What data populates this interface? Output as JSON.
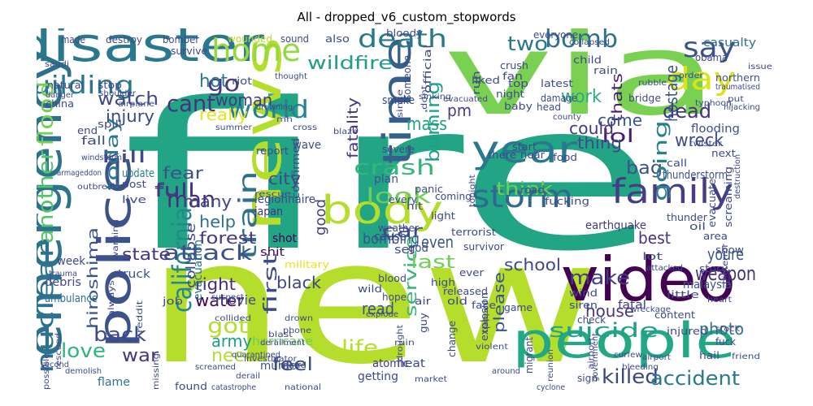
{
  "figure": {
    "title": "All - dropped_v6_custom_stopwords"
  },
  "words": [
    {
      "text": "fire",
      "color": "#21a585"
    },
    {
      "text": "new",
      "color": "#b5dd2b"
    },
    {
      "text": "via",
      "color": "#7ad151"
    },
    {
      "text": "disaster",
      "color": "#2a788e"
    },
    {
      "text": "emergency",
      "color": "#2c728e"
    },
    {
      "text": "news",
      "color": "#b5dd2b"
    },
    {
      "text": "people",
      "color": "#22a884"
    },
    {
      "text": "video",
      "color": "#440154"
    },
    {
      "text": "police",
      "color": "#3b528b"
    },
    {
      "text": "body",
      "color": "#b5dd2b"
    },
    {
      "text": "time",
      "color": "#35608d"
    },
    {
      "text": "year",
      "color": "#2a788e"
    },
    {
      "text": "family",
      "color": "#433e85"
    },
    {
      "text": "storm",
      "color": "#31688e"
    },
    {
      "text": "home",
      "color": "#95d840"
    },
    {
      "text": "day",
      "color": "#dde318"
    },
    {
      "text": "say",
      "color": "#3b528b"
    },
    {
      "text": "death",
      "color": "#2a788e"
    },
    {
      "text": "bomb",
      "color": "#2c728e"
    },
    {
      "text": "building",
      "color": "#2a788e"
    },
    {
      "text": "california",
      "color": "#23898e"
    },
    {
      "text": "nuclear",
      "color": "#2c728e"
    },
    {
      "text": "another",
      "color": "#52c569"
    },
    {
      "text": "flood",
      "color": "#75d054"
    },
    {
      "text": "train",
      "color": "#2e6f8e"
    },
    {
      "text": "world",
      "color": "#26828e"
    },
    {
      "text": "go",
      "color": "#443983"
    },
    {
      "text": "cant",
      "color": "#46327e"
    },
    {
      "text": "man",
      "color": "#472d7b"
    },
    {
      "text": "crash",
      "color": "#35b779"
    },
    {
      "text": "look",
      "color": "#6ece58"
    },
    {
      "text": "car",
      "color": "#3e4989"
    },
    {
      "text": "attack",
      "color": "#3b528b"
    },
    {
      "text": "suicide",
      "color": "#1fa188"
    },
    {
      "text": "make",
      "color": "#443983"
    },
    {
      "text": "dead",
      "color": "#46327e"
    },
    {
      "text": "burning",
      "color": "#1f9e89"
    },
    {
      "text": "watch",
      "color": "#3e4a89"
    },
    {
      "text": "injury",
      "color": "#3e4989"
    },
    {
      "text": "two",
      "color": "#2a788e"
    },
    {
      "text": "work",
      "color": "#27ad81"
    },
    {
      "text": "mass",
      "color": "#20a486"
    },
    {
      "text": "fatality",
      "color": "#46337f"
    },
    {
      "text": "hot",
      "color": "#2a788e"
    },
    {
      "text": "woman",
      "color": "#443983"
    },
    {
      "text": "wildfire",
      "color": "#1f9e89"
    },
    {
      "text": "pm",
      "color": "#433e85"
    },
    {
      "text": "thats",
      "color": "#481f70"
    },
    {
      "text": "lol",
      "color": "#481f70"
    },
    {
      "text": "come",
      "color": "#39558c"
    },
    {
      "text": "hostage",
      "color": "#3b528b"
    },
    {
      "text": "wreck",
      "color": "#3e4989"
    },
    {
      "text": "could",
      "color": "#453882"
    },
    {
      "text": "thing",
      "color": "#3e4989"
    },
    {
      "text": "bag",
      "color": "#3b528b"
    },
    {
      "text": "going",
      "color": "#26818e"
    },
    {
      "text": "kill",
      "color": "#3e4989"
    },
    {
      "text": "today",
      "color": "#2a788e"
    },
    {
      "text": "fear",
      "color": "#3b528b"
    },
    {
      "text": "full",
      "color": "#453781"
    },
    {
      "text": "city",
      "color": "#3e4989"
    },
    {
      "text": "think",
      "color": "#6ece58"
    },
    {
      "text": "many",
      "color": "#414487"
    },
    {
      "text": "hiroshima",
      "color": "#3b528b"
    },
    {
      "text": "love",
      "color": "#2fb47c"
    },
    {
      "text": "back",
      "color": "#3e4989"
    },
    {
      "text": "war",
      "color": "#453781"
    },
    {
      "text": "got",
      "color": "#b5dd2b"
    },
    {
      "text": "need",
      "color": "#b5dd2b"
    },
    {
      "text": "army",
      "color": "#1f9e89"
    },
    {
      "text": "water",
      "color": "#440154"
    },
    {
      "text": "right",
      "color": "#472c7a"
    },
    {
      "text": "forest",
      "color": "#443983"
    },
    {
      "text": "help",
      "color": "#2e6e8e"
    },
    {
      "text": "first",
      "color": "#3e4989"
    },
    {
      "text": "black",
      "color": "#414487"
    },
    {
      "text": "life",
      "color": "#b5dd2b"
    },
    {
      "text": "service",
      "color": "#35b779"
    },
    {
      "text": "feel",
      "color": "#3e4989"
    },
    {
      "text": "killed",
      "color": "#414487"
    },
    {
      "text": "accident",
      "color": "#2a788e"
    },
    {
      "text": "weapon",
      "color": "#46337f"
    },
    {
      "text": "school",
      "color": "#3e4989"
    },
    {
      "text": "last",
      "color": "#6ece58"
    },
    {
      "text": "even",
      "color": "#3b528b"
    },
    {
      "text": "state",
      "color": "#453781"
    },
    {
      "text": "youre",
      "color": "#3b528b"
    },
    {
      "text": "best",
      "color": "#46327e"
    },
    {
      "text": "photo",
      "color": "#2e6f8e"
    },
    {
      "text": "house",
      "color": "#453781"
    },
    {
      "text": "please",
      "color": "#3b528b"
    },
    {
      "text": "good",
      "color": "#433e85"
    },
    {
      "text": "really",
      "color": "#e5e419"
    },
    {
      "text": "read",
      "color": "#3b528b"
    },
    {
      "text": "bombing",
      "color": "#3b528b"
    },
    {
      "text": "collapse",
      "color": "#3e4989"
    },
    {
      "text": "full",
      "color": "#453781"
    },
    {
      "text": "evacuation",
      "color": "#2c728e"
    },
    {
      "text": "earthquake",
      "color": "#443983"
    },
    {
      "text": "thunderstorm",
      "color": "#3b528b"
    },
    {
      "text": "update",
      "color": "#26828e"
    },
    {
      "text": "japan",
      "color": "#46327e"
    },
    {
      "text": "legionnaire",
      "color": "#3e4989"
    },
    {
      "text": "malaysia",
      "color": "#3b528b"
    },
    {
      "text": "fatal",
      "color": "#433e85"
    },
    {
      "text": "movie",
      "color": "#3e4989"
    },
    {
      "text": "hurricane",
      "color": "#6ece58"
    },
    {
      "text": "murder",
      "color": "#3b528b"
    },
    {
      "text": "atomic",
      "color": "#443983"
    },
    {
      "text": "heat",
      "color": "#3e4989"
    },
    {
      "text": "getting",
      "color": "#3e4989"
    },
    {
      "text": "flame",
      "color": "#2a788e"
    },
    {
      "text": "truck",
      "color": "#3b528b"
    },
    {
      "text": "debris",
      "color": "#3e4989"
    },
    {
      "text": "week",
      "color": "#3e4989"
    },
    {
      "text": "ambulance",
      "color": "#2e6f8e"
    },
    {
      "text": "military",
      "color": "#e5e419"
    },
    {
      "text": "shot",
      "color": "#440154"
    },
    {
      "text": "shit",
      "color": "#440154"
    },
    {
      "text": "cause",
      "color": "#3e4989"
    },
    {
      "text": "set",
      "color": "#3e4989"
    },
    {
      "text": "god",
      "color": "#3e4989"
    },
    {
      "text": "plan",
      "color": "#3b528b"
    },
    {
      "text": "fall",
      "color": "#3e4989"
    },
    {
      "text": "wave",
      "color": "#3e4989"
    },
    {
      "text": "report",
      "color": "#3e4989"
    },
    {
      "text": "smoke",
      "color": "#3e4989"
    },
    {
      "text": "severe",
      "color": "#3e4989"
    },
    {
      "text": "riot",
      "color": "#3e4989"
    },
    {
      "text": "everyone",
      "color": "#3e4989"
    },
    {
      "text": "northern",
      "color": "#3b528b"
    },
    {
      "text": "flooding",
      "color": "#3b528b"
    },
    {
      "text": "casualty",
      "color": "#2e6f8e"
    },
    {
      "text": "obama",
      "color": "#3e4989"
    },
    {
      "text": "latest",
      "color": "#3e4989"
    },
    {
      "text": "damage",
      "color": "#3e4989"
    },
    {
      "text": "night",
      "color": "#3e4989"
    },
    {
      "text": "crush",
      "color": "#3e4989"
    },
    {
      "text": "top",
      "color": "#3e4989"
    },
    {
      "text": "child",
      "color": "#3e4989"
    },
    {
      "text": "rain",
      "color": "#3e4989"
    },
    {
      "text": "made",
      "color": "#3e4989"
    },
    {
      "text": "bomber",
      "color": "#3e4989"
    },
    {
      "text": "survive",
      "color": "#3e4989"
    },
    {
      "text": "wounded",
      "color": "#b5dd2b"
    },
    {
      "text": "sound",
      "color": "#3e4989"
    },
    {
      "text": "also",
      "color": "#3e4989"
    },
    {
      "text": "bloody",
      "color": "#3e4989"
    },
    {
      "text": "liked",
      "color": "#3e4989"
    },
    {
      "text": "fan",
      "color": "#3e4989"
    },
    {
      "text": "baby",
      "color": "#3e4989"
    },
    {
      "text": "head",
      "color": "#3e4989"
    },
    {
      "text": "bridge",
      "color": "#3e4989"
    },
    {
      "text": "next",
      "color": "#3e4989"
    },
    {
      "text": "call",
      "color": "#3e4989"
    },
    {
      "text": "thunder",
      "color": "#3e4989"
    },
    {
      "text": "evacuate",
      "color": "#3e4989"
    },
    {
      "text": "screaming",
      "color": "#3e4989"
    },
    {
      "text": "oil",
      "color": "#3e4989"
    },
    {
      "text": "area",
      "color": "#3e4989"
    },
    {
      "text": "show",
      "color": "#3e4989"
    },
    {
      "text": "story",
      "color": "#3e4989"
    },
    {
      "text": "little",
      "color": "#3e4989"
    },
    {
      "text": "wind",
      "color": "#3e4989"
    },
    {
      "text": "siren",
      "color": "#3e4989"
    },
    {
      "text": "content",
      "color": "#3e4989"
    },
    {
      "text": "injured",
      "color": "#3e4989"
    },
    {
      "text": "explosion",
      "color": "#3e4989"
    },
    {
      "text": "check",
      "color": "#3e4989"
    },
    {
      "text": "game",
      "color": "#3e4989"
    },
    {
      "text": "face",
      "color": "#3e4989"
    },
    {
      "text": "released",
      "color": "#3e4989"
    },
    {
      "text": "ever",
      "color": "#3e4989"
    },
    {
      "text": "old",
      "color": "#3e4989"
    },
    {
      "text": "air",
      "color": "#3e4989"
    },
    {
      "text": "hope",
      "color": "#3e4989"
    },
    {
      "text": "wild",
      "color": "#3e4989"
    },
    {
      "text": "blood",
      "color": "#3e4989"
    },
    {
      "text": "high",
      "color": "#3e4989"
    },
    {
      "text": "change",
      "color": "#3e4989"
    },
    {
      "text": "guy",
      "color": "#3e4989"
    },
    {
      "text": "migrant",
      "color": "#3e4989"
    },
    {
      "text": "fucking",
      "color": "#3e4989"
    },
    {
      "text": "terrorist",
      "color": "#3e4989"
    },
    {
      "text": "survivor",
      "color": "#3e4989"
    },
    {
      "text": "tonight",
      "color": "#3e4989"
    },
    {
      "text": "weather",
      "color": "#3e4989"
    },
    {
      "text": "coming",
      "color": "#3e4989"
    },
    {
      "text": "panic",
      "color": "#3e4989"
    },
    {
      "text": "start",
      "color": "#3e4989"
    },
    {
      "text": "there",
      "color": "#3e4989"
    },
    {
      "text": "near",
      "color": "#3e4989"
    },
    {
      "text": "food",
      "color": "#3e4989"
    },
    {
      "text": "end",
      "color": "#3e4989"
    },
    {
      "text": "china",
      "color": "#3e4989"
    },
    {
      "text": "natural",
      "color": "#3e4989"
    },
    {
      "text": "stop",
      "color": "#3e4989"
    },
    {
      "text": "post",
      "color": "#3e4989"
    },
    {
      "text": "live",
      "color": "#3e4989"
    },
    {
      "text": "job",
      "color": "#3e4989"
    },
    {
      "text": "warning",
      "color": "#3e4989"
    },
    {
      "text": "always",
      "color": "#3e4989"
    },
    {
      "text": "found",
      "color": "#3e4989"
    },
    {
      "text": "spill",
      "color": "#3e4989"
    },
    {
      "text": "summer",
      "color": "#3e4989"
    },
    {
      "text": "confirmed",
      "color": "#3e4989"
    },
    {
      "text": "rescue",
      "color": "#3e4989"
    },
    {
      "text": "reddit",
      "color": "#3e4989"
    },
    {
      "text": "missing",
      "color": "#3e4989"
    },
    {
      "text": "mh",
      "color": "#3e4989"
    },
    {
      "text": "cross",
      "color": "#3e4989"
    },
    {
      "text": "someone",
      "color": "#3e4989"
    },
    {
      "text": "run",
      "color": "#3e4989"
    },
    {
      "text": "official",
      "color": "#3e4989"
    },
    {
      "text": "sinking",
      "color": "#3e4989"
    },
    {
      "text": "every",
      "color": "#3e4989"
    },
    {
      "text": "hit",
      "color": "#3e4989"
    },
    {
      "text": "light",
      "color": "#3e4989"
    },
    {
      "text": "trapped",
      "color": "#3e4989"
    },
    {
      "text": "dont",
      "color": "#3e4989"
    },
    {
      "text": "since",
      "color": "#3e4989"
    },
    {
      "text": "sign",
      "color": "#3e4989"
    },
    {
      "text": "fuck",
      "color": "#3e4989"
    },
    {
      "text": "hail",
      "color": "#3e4989"
    },
    {
      "text": "stock",
      "color": "#3e4989"
    },
    {
      "text": "destroy",
      "color": "#3e4989"
    },
    {
      "text": "market",
      "color": "#3e4989"
    },
    {
      "text": "ruin",
      "color": "#3e4989"
    },
    {
      "text": "drought",
      "color": "#3e4989"
    },
    {
      "text": "heart",
      "color": "#3e4989"
    },
    {
      "text": "road",
      "color": "#3e4989"
    },
    {
      "text": "friend",
      "color": "#3e4989"
    },
    {
      "text": "explode",
      "color": "#3e4989"
    },
    {
      "text": "airport",
      "color": "#3e4989"
    },
    {
      "text": "curfew",
      "color": "#3e4989"
    },
    {
      "text": "bleeding",
      "color": "#3e4989"
    },
    {
      "text": "reunion",
      "color": "#3e4989"
    },
    {
      "text": "national",
      "color": "#3e4989"
    },
    {
      "text": "cyclone",
      "color": "#3e4989"
    },
    {
      "text": "wreckage",
      "color": "#3e4989"
    },
    {
      "text": "violent",
      "color": "#3e4989"
    },
    {
      "text": "derail",
      "color": "#3e4989"
    },
    {
      "text": "catastrophe",
      "color": "#3e4989"
    },
    {
      "text": "demolish",
      "color": "#3e4989"
    },
    {
      "text": "second",
      "color": "#3e4989"
    },
    {
      "text": "trauma",
      "color": "#3e4989"
    },
    {
      "text": "windstorm",
      "color": "#3e4989"
    },
    {
      "text": "armageddon",
      "color": "#3e4989"
    },
    {
      "text": "outbreak",
      "color": "#3e4989"
    },
    {
      "text": "airplane",
      "color": "#3e4989"
    },
    {
      "text": "shoulder",
      "color": "#3e4989"
    },
    {
      "text": "danger",
      "color": "#3e4989"
    },
    {
      "text": "saudi",
      "color": "#3e4989"
    },
    {
      "text": "drowning",
      "color": "#3e4989"
    },
    {
      "text": "hijacking",
      "color": "#3e4989"
    },
    {
      "text": "typhoon",
      "color": "#3e4989"
    },
    {
      "text": "issue",
      "color": "#3e4989"
    },
    {
      "text": "order",
      "color": "#3e4989"
    },
    {
      "text": "collapsed",
      "color": "#3e4989"
    },
    {
      "text": "put",
      "color": "#3e4989"
    },
    {
      "text": "traumatised",
      "color": "#3e4989"
    },
    {
      "text": "destruction",
      "color": "#3e4989"
    },
    {
      "text": "lot",
      "color": "#3e4989"
    },
    {
      "text": "attacked",
      "color": "#3e4989"
    },
    {
      "text": "bioterror",
      "color": "#3e4989"
    },
    {
      "text": "county",
      "color": "#3e4989"
    },
    {
      "text": "twister",
      "color": "#3e4989"
    },
    {
      "text": "government",
      "color": "#3e4989"
    },
    {
      "text": "evacuated",
      "color": "#3e4989"
    },
    {
      "text": "thought",
      "color": "#3e4989"
    },
    {
      "text": "rubble",
      "color": "#3e4989"
    },
    {
      "text": "blaze",
      "color": "#3e4989"
    },
    {
      "text": "blast",
      "color": "#3e4989"
    },
    {
      "text": "derailment",
      "color": "#3e4989"
    },
    {
      "text": "quarantined",
      "color": "#3e4989"
    },
    {
      "text": "investigator",
      "color": "#3e4989"
    },
    {
      "text": "island",
      "color": "#3e4989"
    },
    {
      "text": "suspect",
      "color": "#3e4989"
    },
    {
      "text": "screamed",
      "color": "#3e4989"
    },
    {
      "text": "drown",
      "color": "#3e4989"
    },
    {
      "text": "phone",
      "color": "#3e4989"
    },
    {
      "text": "collided",
      "color": "#3e4989"
    },
    {
      "text": "possible",
      "color": "#3e4989"
    },
    {
      "text": "rescued",
      "color": "#3e4989"
    },
    {
      "text": "around",
      "color": "#3e4989"
    },
    {
      "text": "airport",
      "color": "#3e4989"
    }
  ]
}
